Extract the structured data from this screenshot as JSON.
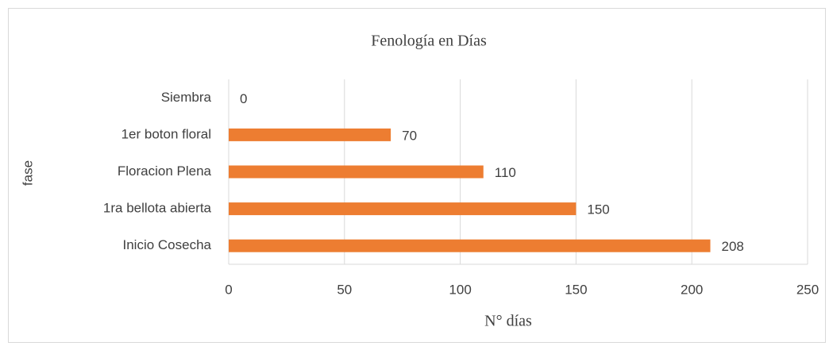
{
  "chart_data": {
    "type": "bar",
    "orientation": "horizontal",
    "title": "Fenología en Días",
    "x_label": "N° días",
    "y_label": "fase",
    "categories": [
      "Siembra",
      "1er boton floral",
      "Floracion Plena",
      "1ra bellota abierta",
      "Inicio Cosecha"
    ],
    "values": [
      0,
      70,
      110,
      150,
      208
    ],
    "color": "#ed7d31",
    "xlim": [
      0,
      250
    ],
    "xticks": [
      0,
      50,
      100,
      150,
      200,
      250
    ],
    "grid": true
  }
}
